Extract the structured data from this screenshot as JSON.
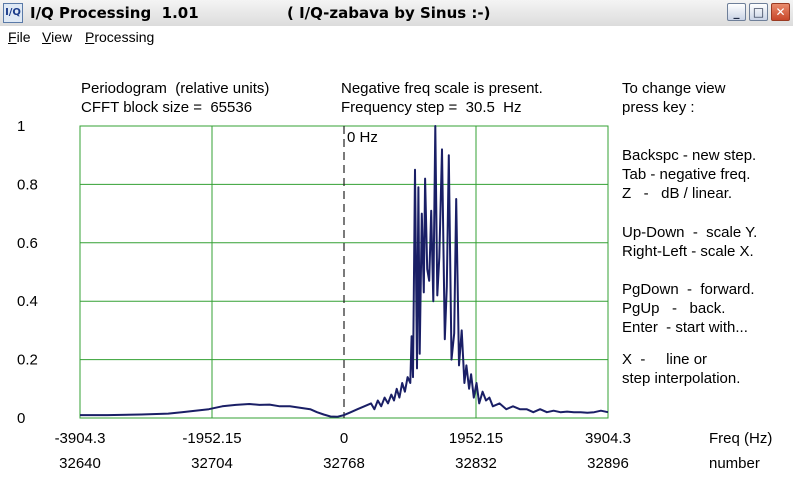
{
  "window": {
    "icon_label": "I/Q",
    "title": "I/Q Processing  1.01",
    "subtitle": "( I/Q-zabava by Sinus :-)",
    "controls": {
      "minimize": "_",
      "maximize": "□",
      "close": "✕"
    }
  },
  "menu": {
    "items": [
      {
        "accel": "F",
        "rest": "ile"
      },
      {
        "accel": "V",
        "rest": "iew"
      },
      {
        "accel": "P",
        "rest": "rocessing"
      }
    ]
  },
  "info": {
    "line1_left": "Periodogram  (relative units)",
    "line2_left": "CFFT block size =  65536",
    "line1_mid": "Negative freq scale is present.",
    "line2_mid": "Frequency step =  30.5  Hz"
  },
  "help": {
    "lines": [
      "To change view",
      "press key :",
      "Backspc - new step.",
      "Tab - negative freq.",
      "Z   -   dB / linear.",
      "Up-Down  -  scale Y.",
      "Right-Left - scale X.",
      "PgDown  -  forward.",
      "PgUp   -   back.",
      "Enter  - start with...",
      "X  -     line or",
      "step interpolation."
    ]
  },
  "chart_data": {
    "type": "line",
    "title": "Periodogram  (relative units)",
    "xlabel": "Freq (Hz)",
    "x2label": "number",
    "xlim": [
      -3904.3,
      3904.3
    ],
    "ylim": [
      0,
      1
    ],
    "yticks": [
      "1",
      "0.8",
      "0.6",
      "0.4",
      "0.2",
      "0"
    ],
    "xticks": [
      "-3904.3",
      "-1952.15",
      "0",
      "1952.15",
      "3904.3"
    ],
    "number_ticks": [
      "32640",
      "32704",
      "32768",
      "32832",
      "32896"
    ],
    "zero_marker_label": "0 Hz",
    "grid": true,
    "colors": {
      "grid": "#33a033",
      "line": "#1a1f66",
      "zero_line": "#222222"
    },
    "series": [
      {
        "x": [
          -3904,
          -3500,
          -3000,
          -2600,
          -2400,
          -2200,
          -2000,
          -1800,
          -1600,
          -1400,
          -1250,
          -1100,
          -950,
          -800,
          -650,
          -500,
          -400,
          -300,
          -200,
          -100,
          0,
          100,
          200,
          300,
          400,
          450,
          500,
          550,
          600,
          650,
          700,
          740,
          780,
          820,
          860,
          900,
          940,
          980,
          1000,
          1020,
          1050,
          1080,
          1100,
          1120,
          1150,
          1180,
          1200,
          1230,
          1260,
          1290,
          1320,
          1350,
          1380,
          1410,
          1450,
          1490,
          1520,
          1550,
          1590,
          1630,
          1660,
          1700,
          1740,
          1780,
          1810,
          1850,
          1880,
          1920,
          1960,
          2000,
          2050,
          2100,
          2150,
          2200,
          2300,
          2400,
          2500,
          2600,
          2700,
          2800,
          2900,
          3000,
          3100,
          3200,
          3300,
          3400,
          3500,
          3600,
          3700,
          3800,
          3904
        ],
        "y": [
          0.01,
          0.01,
          0.012,
          0.015,
          0.02,
          0.025,
          0.03,
          0.04,
          0.045,
          0.048,
          0.045,
          0.046,
          0.04,
          0.04,
          0.035,
          0.03,
          0.02,
          0.012,
          0.005,
          0.004,
          0.01,
          0.02,
          0.03,
          0.04,
          0.05,
          0.03,
          0.06,
          0.04,
          0.07,
          0.05,
          0.08,
          0.06,
          0.1,
          0.07,
          0.12,
          0.09,
          0.14,
          0.12,
          0.28,
          0.14,
          0.85,
          0.17,
          0.79,
          0.22,
          0.7,
          0.43,
          0.82,
          0.51,
          0.47,
          0.71,
          0.4,
          1.0,
          0.42,
          0.55,
          0.92,
          0.27,
          0.45,
          0.9,
          0.2,
          0.29,
          0.75,
          0.18,
          0.3,
          0.12,
          0.18,
          0.1,
          0.15,
          0.07,
          0.12,
          0.05,
          0.09,
          0.06,
          0.07,
          0.04,
          0.05,
          0.03,
          0.04,
          0.03,
          0.03,
          0.02,
          0.03,
          0.02,
          0.025,
          0.02,
          0.022,
          0.02,
          0.02,
          0.018,
          0.02,
          0.025,
          0.02
        ]
      }
    ]
  }
}
